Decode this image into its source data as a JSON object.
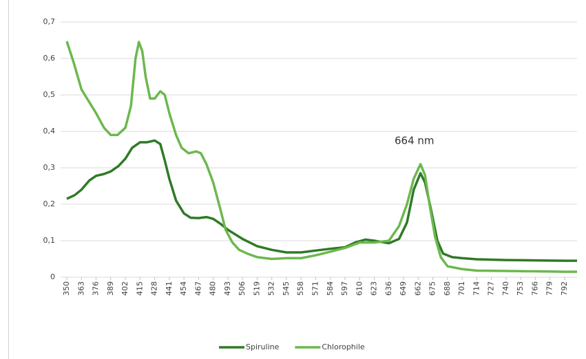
{
  "chart_data": {
    "type": "line",
    "annotations": [
      "664 nm"
    ],
    "xlim": [
      344.5,
      803
    ],
    "xticks": [
      350,
      363,
      376,
      389,
      402,
      415,
      428,
      441,
      454,
      467,
      480,
      493,
      506,
      519,
      532,
      545,
      558,
      571,
      584,
      597,
      610,
      623,
      636,
      649,
      662,
      675,
      688,
      701,
      714,
      727,
      740,
      753,
      766,
      779,
      792
    ],
    "ylim": [
      0,
      0.7
    ],
    "yticks": [
      0,
      {
        "value": 0.1,
        "label": "0,1"
      },
      {
        "value": 0.2,
        "label": "0,2"
      },
      {
        "value": 0.3,
        "label": "0,3"
      },
      {
        "value": 0.4,
        "label": "0,4"
      },
      {
        "value": 0.5,
        "label": "0,5"
      },
      {
        "value": 0.6,
        "label": "0,6"
      },
      {
        "value": 0.7,
        "label": "0,7"
      }
    ],
    "grid": true,
    "legend": "bottom",
    "series": [
      {
        "name": "Spiruline",
        "color": "#2f7a26",
        "x": [
          350,
          357,
          363,
          370,
          376,
          383,
          389,
          396,
          402,
          408,
          415,
          421,
          428,
          433,
          437,
          441,
          447,
          454,
          460,
          467,
          474,
          480,
          487,
          493,
          506,
          519,
          532,
          545,
          558,
          571,
          584,
          597,
          606,
          615,
          623,
          636,
          645,
          652,
          658,
          664,
          668,
          673,
          679,
          684,
          692,
          701,
          714,
          740,
          766,
          792,
          803
        ],
        "values": [
          0.215,
          0.225,
          0.24,
          0.265,
          0.278,
          0.283,
          0.29,
          0.305,
          0.325,
          0.355,
          0.37,
          0.37,
          0.375,
          0.365,
          0.32,
          0.27,
          0.21,
          0.175,
          0.163,
          0.162,
          0.165,
          0.16,
          0.145,
          0.13,
          0.105,
          0.085,
          0.075,
          0.068,
          0.068,
          0.073,
          0.078,
          0.082,
          0.095,
          0.103,
          0.1,
          0.093,
          0.105,
          0.15,
          0.24,
          0.285,
          0.26,
          0.19,
          0.1,
          0.065,
          0.055,
          0.052,
          0.049,
          0.047,
          0.046,
          0.045,
          0.045
        ]
      },
      {
        "name": "Chlorophile",
        "color": "#6cb84e",
        "x": [
          350,
          356,
          363,
          370,
          376,
          383,
          389,
          395,
          402,
          407,
          411,
          414,
          417,
          420,
          424,
          428,
          433,
          437,
          441,
          447,
          452,
          458,
          465,
          469,
          474,
          480,
          486,
          491,
          497,
          503,
          510,
          519,
          532,
          545,
          558,
          571,
          584,
          597,
          610,
          623,
          636,
          645,
          652,
          658,
          664,
          668,
          672,
          677,
          682,
          688,
          701,
          714,
          740,
          766,
          792,
          803
        ],
        "values": [
          0.647,
          0.59,
          0.515,
          0.48,
          0.45,
          0.41,
          0.39,
          0.39,
          0.41,
          0.47,
          0.6,
          0.645,
          0.62,
          0.55,
          0.49,
          0.49,
          0.51,
          0.5,
          0.45,
          0.39,
          0.355,
          0.34,
          0.345,
          0.34,
          0.31,
          0.26,
          0.19,
          0.13,
          0.095,
          0.075,
          0.065,
          0.055,
          0.05,
          0.052,
          0.052,
          0.06,
          0.07,
          0.08,
          0.095,
          0.095,
          0.1,
          0.14,
          0.2,
          0.27,
          0.31,
          0.28,
          0.2,
          0.11,
          0.055,
          0.03,
          0.022,
          0.018,
          0.017,
          0.016,
          0.015,
          0.015
        ]
      }
    ]
  }
}
